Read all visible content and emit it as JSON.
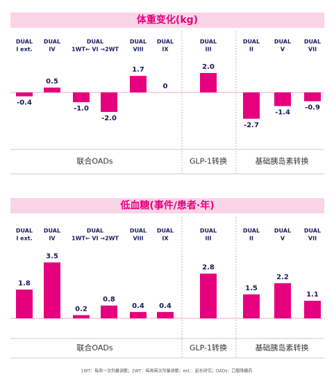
{
  "charts": [
    {
      "type": "bar",
      "title": "体重变化(kg)",
      "color": "#e6007e",
      "groups": [
        {
          "label": "联合OADs",
          "columns": [
            {
              "lines": [
                "DUAL",
                "I ext."
              ],
              "values": [
                -0.4
              ],
              "value_labels": [
                "-0.4"
              ]
            },
            {
              "lines": [
                "DUAL",
                "IV"
              ],
              "values": [
                0.5
              ],
              "value_labels": [
                "0.5"
              ]
            },
            {
              "lines": [
                "DUAL",
                "1WT← VI →2WT"
              ],
              "values": [
                -1.0,
                -2.0
              ],
              "value_labels": [
                "-1.0",
                "-2.0"
              ]
            },
            {
              "lines": [
                "DUAL",
                "VIII"
              ],
              "values": [
                1.7
              ],
              "value_labels": [
                "1.7"
              ]
            },
            {
              "lines": [
                "DUAL",
                "IX"
              ],
              "values": [
                0
              ],
              "value_labels": [
                "0"
              ]
            }
          ]
        },
        {
          "label": "GLP-1转换",
          "columns": [
            {
              "lines": [
                "DUAL",
                "III"
              ],
              "values": [
                2.0
              ],
              "value_labels": [
                "2.0"
              ]
            }
          ]
        },
        {
          "label": "基础胰岛素转换",
          "columns": [
            {
              "lines": [
                "DUAL",
                "II"
              ],
              "values": [
                -2.7
              ],
              "value_labels": [
                "-2.7"
              ]
            },
            {
              "lines": [
                "DUAL",
                "V"
              ],
              "values": [
                -1.4
              ],
              "value_labels": [
                "-1.4"
              ]
            },
            {
              "lines": [
                "DUAL",
                "VII"
              ],
              "values": [
                -0.9
              ],
              "value_labels": [
                "-0.9"
              ]
            }
          ]
        }
      ]
    },
    {
      "type": "bar",
      "title": "低血糖(事件/患者·年)",
      "color": "#e6007e",
      "groups": [
        {
          "label": "联合OADs",
          "columns": [
            {
              "lines": [
                "DUAL",
                "I ext."
              ],
              "values": [
                1.8
              ],
              "value_labels": [
                "1.8"
              ]
            },
            {
              "lines": [
                "DUAL",
                "IV"
              ],
              "values": [
                3.5
              ],
              "value_labels": [
                "3.5"
              ]
            },
            {
              "lines": [
                "DUAL",
                "1WT← VI →2WT"
              ],
              "values": [
                0.2,
                0.8
              ],
              "value_labels": [
                "0.2",
                "0.8"
              ]
            },
            {
              "lines": [
                "DUAL",
                "VIII"
              ],
              "values": [
                0.4
              ],
              "value_labels": [
                "0.4"
              ]
            },
            {
              "lines": [
                "DUAL",
                "IX"
              ],
              "values": [
                0.4
              ],
              "value_labels": [
                "0.4"
              ]
            }
          ]
        },
        {
          "label": "GLP-1转换",
          "columns": [
            {
              "lines": [
                "DUAL",
                "III"
              ],
              "values": [
                2.8
              ],
              "value_labels": [
                "2.8"
              ]
            }
          ]
        },
        {
          "label": "基础胰岛素转换",
          "columns": [
            {
              "lines": [
                "DUAL",
                "II"
              ],
              "values": [
                1.5
              ],
              "value_labels": [
                "1.5"
              ]
            },
            {
              "lines": [
                "DUAL",
                "V"
              ],
              "values": [
                2.2
              ],
              "value_labels": [
                "2.2"
              ]
            },
            {
              "lines": [
                "DUAL",
                "VII"
              ],
              "values": [
                1.1
              ],
              "value_labels": [
                "1.1"
              ]
            }
          ]
        }
      ]
    }
  ],
  "footnote": "1WT：每周一次剂量调整；2WT：每周两次剂量调整；ext.：延长研究；OADs：口服降糖药"
}
